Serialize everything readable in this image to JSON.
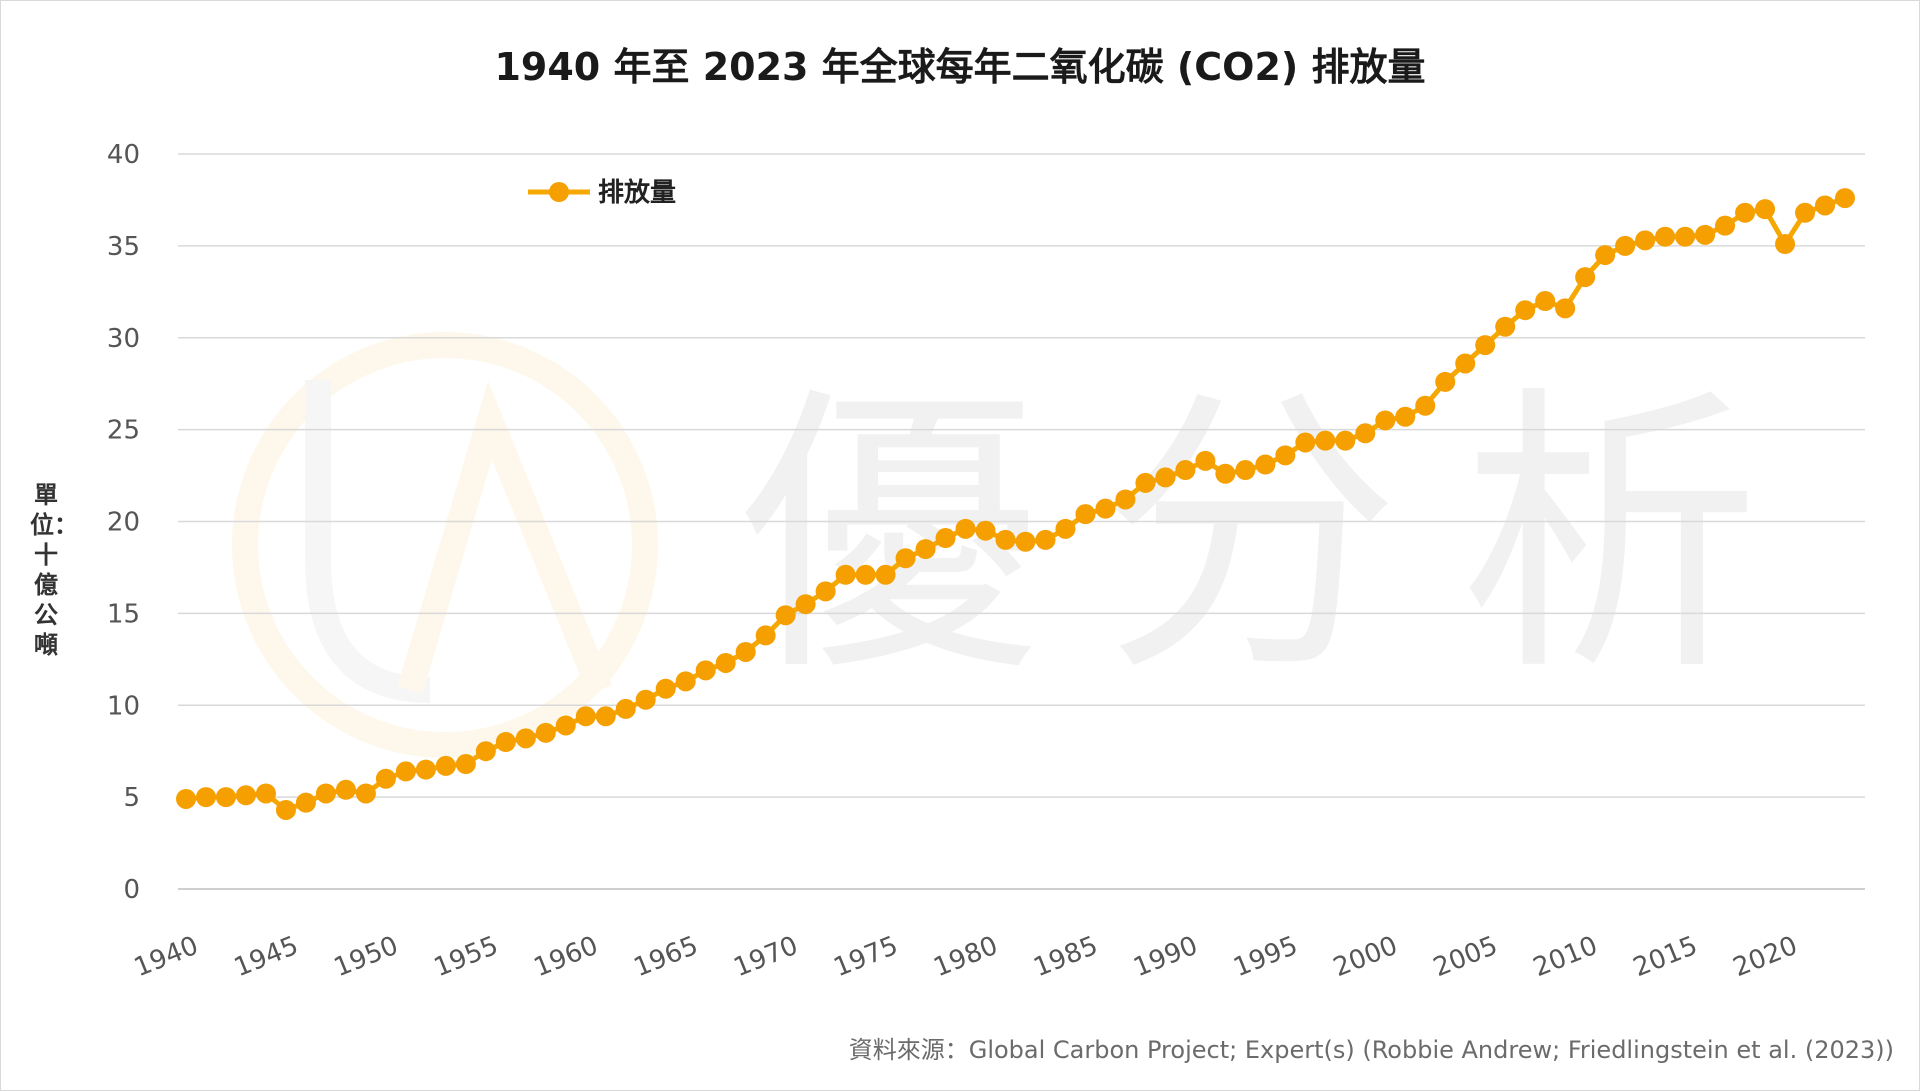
{
  "chart_data": {
    "type": "line",
    "title": "1940 年至 2023 年全球每年二氧化碳 (CO2) 排放量",
    "ylabel": "單位：十億公噸",
    "xlabel": "",
    "ylim": [
      0,
      40
    ],
    "yticks": [
      0,
      5,
      10,
      15,
      20,
      25,
      30,
      35,
      40
    ],
    "xticks": [
      1940,
      1945,
      1950,
      1955,
      1960,
      1965,
      1970,
      1975,
      1980,
      1985,
      1990,
      1995,
      2000,
      2005,
      2010,
      2015,
      2020
    ],
    "xlim": [
      1940,
      2023
    ],
    "grid": "horizontal",
    "legend_position": "top-left",
    "series": [
      {
        "name": "排放量",
        "color": "#f5a800",
        "marker_color": "#f5a000",
        "x": [
          1940,
          1941,
          1942,
          1943,
          1944,
          1945,
          1946,
          1947,
          1948,
          1949,
          1950,
          1951,
          1952,
          1953,
          1954,
          1955,
          1956,
          1957,
          1958,
          1959,
          1960,
          1961,
          1962,
          1963,
          1964,
          1965,
          1966,
          1967,
          1968,
          1969,
          1970,
          1971,
          1972,
          1973,
          1974,
          1975,
          1976,
          1977,
          1978,
          1979,
          1980,
          1981,
          1982,
          1983,
          1984,
          1985,
          1986,
          1987,
          1988,
          1989,
          1990,
          1991,
          1992,
          1993,
          1994,
          1995,
          1996,
          1997,
          1998,
          1999,
          2000,
          2001,
          2002,
          2003,
          2004,
          2005,
          2006,
          2007,
          2008,
          2009,
          2010,
          2011,
          2012,
          2013,
          2014,
          2015,
          2016,
          2017,
          2018,
          2019,
          2020,
          2021,
          2022,
          2023
        ],
        "values": [
          4.9,
          5.0,
          5.0,
          5.1,
          5.2,
          4.3,
          4.7,
          5.2,
          5.4,
          5.2,
          6.0,
          6.4,
          6.5,
          6.7,
          6.8,
          7.5,
          8.0,
          8.2,
          8.5,
          8.9,
          9.4,
          9.4,
          9.8,
          10.3,
          10.9,
          11.3,
          11.9,
          12.3,
          12.9,
          13.8,
          14.9,
          15.5,
          16.2,
          17.1,
          17.1,
          17.1,
          18.0,
          18.5,
          19.1,
          19.6,
          19.5,
          19.0,
          18.9,
          19.0,
          19.6,
          20.4,
          20.7,
          21.2,
          22.1,
          22.4,
          22.8,
          23.3,
          22.6,
          22.8,
          23.1,
          23.6,
          24.3,
          24.4,
          24.4,
          24.8,
          25.5,
          25.7,
          26.3,
          27.6,
          28.6,
          29.6,
          30.6,
          31.5,
          32.0,
          31.6,
          33.3,
          34.5,
          35.0,
          35.3,
          35.5,
          35.5,
          35.6,
          36.1,
          36.8,
          37.0,
          35.1,
          36.8,
          37.2,
          37.6
        ]
      }
    ]
  },
  "source_note": "資料來源：Global Carbon Project; Expert(s) (Robbie Andrew; Friedlingstein et al. (2023))",
  "watermark": {
    "text": "優分析",
    "logo_letters": "UA"
  }
}
